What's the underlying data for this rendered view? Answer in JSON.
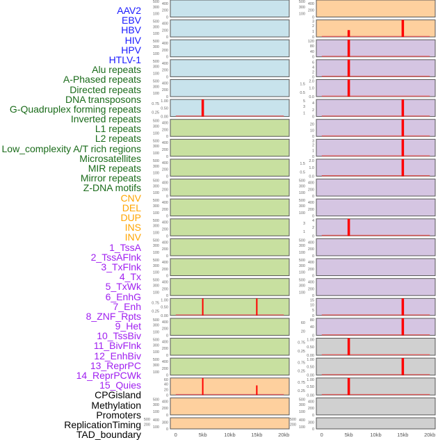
{
  "chart_data": {
    "type": "bar",
    "title": "",
    "xlabel": "",
    "ylabel": "",
    "xlim_kb": [
      -1,
      21
    ],
    "x_ticks": [
      {
        "value": 0,
        "label": "0"
      },
      {
        "value": 5,
        "label": "5kb"
      },
      {
        "value": 10,
        "label": "10kb"
      },
      {
        "value": 15,
        "label": "15kb"
      },
      {
        "value": 20,
        "label": "20kb"
      }
    ],
    "track_labels": [
      {
        "text": "AAV2",
        "color": "#1a1aff"
      },
      {
        "text": "EBV",
        "color": "#1a1aff"
      },
      {
        "text": "HBV",
        "color": "#1a1aff"
      },
      {
        "text": "HIV",
        "color": "#1a1aff"
      },
      {
        "text": "HPV",
        "color": "#1a1aff"
      },
      {
        "text": "HTLV-1",
        "color": "#1a1aff"
      },
      {
        "text": "Alu repeats",
        "color": "#1a6b1a"
      },
      {
        "text": "A-Phased repeats",
        "color": "#1a6b1a"
      },
      {
        "text": "Directed repeats",
        "color": "#1a6b1a"
      },
      {
        "text": "DNA transposons",
        "color": "#1a6b1a"
      },
      {
        "text": "G-Quadruplex forming repeats",
        "color": "#1a6b1a"
      },
      {
        "text": "Inverted repeats",
        "color": "#1a6b1a"
      },
      {
        "text": "L1 repeats",
        "color": "#1a6b1a"
      },
      {
        "text": "L2 repeats",
        "color": "#1a6b1a"
      },
      {
        "text": "Low_complexity A/T rich regions",
        "color": "#1a6b1a"
      },
      {
        "text": "Microsatellites",
        "color": "#1a6b1a"
      },
      {
        "text": "MIR repeats",
        "color": "#1a6b1a"
      },
      {
        "text": "Mirror repeats",
        "color": "#1a6b1a"
      },
      {
        "text": "Z-DNA motifs",
        "color": "#1a6b1a"
      },
      {
        "text": "CNV",
        "color": "#ffa500"
      },
      {
        "text": "DEL",
        "color": "#ffa500"
      },
      {
        "text": "DUP",
        "color": "#ffa500"
      },
      {
        "text": "INS",
        "color": "#ffa500"
      },
      {
        "text": "INV",
        "color": "#ffa500"
      },
      {
        "text": "1_TssA",
        "color": "#a020f0"
      },
      {
        "text": "2_TssAFlnk",
        "color": "#a020f0"
      },
      {
        "text": "3_TxFlnk",
        "color": "#a020f0"
      },
      {
        "text": "4_Tx",
        "color": "#a020f0"
      },
      {
        "text": "5_TxWk",
        "color": "#a020f0"
      },
      {
        "text": "6_EnhG",
        "color": "#a020f0"
      },
      {
        "text": "7_Enh",
        "color": "#a020f0"
      },
      {
        "text": "8_ZNF_Rpts",
        "color": "#a020f0"
      },
      {
        "text": "9_Het",
        "color": "#a020f0"
      },
      {
        "text": "10_TssBiv",
        "color": "#a020f0"
      },
      {
        "text": "11_BivFlnk",
        "color": "#a020f0"
      },
      {
        "text": "12_EnhBiv",
        "color": "#a020f0"
      },
      {
        "text": "13_ReprPC",
        "color": "#a020f0"
      },
      {
        "text": "14_ReprPCWk",
        "color": "#a020f0"
      },
      {
        "text": "15_Quies",
        "color": "#a020f0"
      },
      {
        "text": "CPGisland",
        "color": "#000000"
      },
      {
        "text": "Methylation",
        "color": "#000000"
      },
      {
        "text": "Promoters",
        "color": "#000000"
      },
      {
        "text": "ReplicationTiming",
        "color": "#000000"
      },
      {
        "text": "TAD_boundary",
        "color": "#000000"
      }
    ],
    "colors": {
      "blue": "#c8e3ec",
      "green": "#c8e0a0",
      "orange": "#fed09e",
      "purple": "#d5c5e2",
      "gray": "#d0d0d0",
      "bar": "#ff0000",
      "baseline": "#e06060"
    },
    "columns": [
      {
        "panels": [
          {
            "bg": "blue",
            "ymax": 500,
            "ticks": [
              "0",
              "100",
              "200",
              "300",
              "400",
              "500"
            ],
            "bars": []
          },
          {
            "bg": "blue",
            "ymax": 500,
            "ticks": [
              "0",
              "100",
              "200",
              "300",
              "400",
              "500"
            ],
            "bars": []
          },
          {
            "bg": "blue",
            "ymax": 500,
            "ticks": [
              "0",
              "100",
              "200",
              "300",
              "400",
              "500"
            ],
            "bars": []
          },
          {
            "bg": "blue",
            "ymax": 500,
            "ticks": [
              "0",
              "100",
              "200",
              "300",
              "400",
              "500"
            ],
            "bars": []
          },
          {
            "bg": "blue",
            "ymax": 500,
            "ticks": [
              "0",
              "100",
              "200",
              "300",
              "400",
              "500"
            ],
            "bars": []
          },
          {
            "bg": "blue",
            "ymax": 1,
            "ticks": [
              "0.00",
              "0.25",
              "0.50",
              "0.75",
              "1.00"
            ],
            "bars": [
              {
                "x": 5,
                "y": 1
              }
            ]
          },
          {
            "bg": "green",
            "ymax": 500,
            "ticks": [
              "0",
              "100",
              "200",
              "300",
              "400",
              "500"
            ],
            "bars": []
          },
          {
            "bg": "green",
            "ymax": 500,
            "ticks": [
              "0",
              "100",
              "200",
              "300",
              "400",
              "500"
            ],
            "bars": []
          },
          {
            "bg": "green",
            "ymax": 500,
            "ticks": [
              "0",
              "100",
              "200",
              "300",
              "400",
              "500"
            ],
            "bars": []
          },
          {
            "bg": "green",
            "ymax": 500,
            "ticks": [
              "0",
              "100",
              "200",
              "300",
              "400",
              "500"
            ],
            "bars": []
          },
          {
            "bg": "green",
            "ymax": 500,
            "ticks": [
              "0",
              "100",
              "200",
              "300",
              "400",
              "500"
            ],
            "bars": []
          },
          {
            "bg": "green",
            "ymax": 500,
            "ticks": [
              "0",
              "100",
              "200",
              "300",
              "400",
              "500"
            ],
            "bars": []
          },
          {
            "bg": "green",
            "ymax": 500,
            "ticks": [
              "0",
              "100",
              "200",
              "300",
              "400",
              "500"
            ],
            "bars": []
          },
          {
            "bg": "green",
            "ymax": 500,
            "ticks": [
              "0",
              "100",
              "200",
              "300",
              "400",
              "500"
            ],
            "bars": []
          },
          {
            "bg": "green",
            "ymax": 500,
            "ticks": [
              "0",
              "100",
              "200",
              "300",
              "400",
              "500"
            ],
            "bars": []
          },
          {
            "bg": "green",
            "ymax": 1,
            "ticks": [
              "0.00",
              "0.25",
              "0.50",
              "0.75",
              "1.00"
            ],
            "bars": [
              {
                "x": 5,
                "y": 1
              },
              {
                "x": 15,
                "y": 1
              }
            ]
          },
          {
            "bg": "green",
            "ymax": 500,
            "ticks": [
              "0",
              "100",
              "200",
              "300",
              "400",
              "500"
            ],
            "bars": []
          },
          {
            "bg": "green",
            "ymax": 500,
            "ticks": [
              "0",
              "100",
              "200",
              "300",
              "400",
              "500"
            ],
            "bars": []
          },
          {
            "bg": "green",
            "ymax": 500,
            "ticks": [
              "0",
              "100",
              "200",
              "300",
              "400",
              "500"
            ],
            "bars": []
          },
          {
            "bg": "orange",
            "ymax": 62,
            "ticks": [
              "0",
              "20",
              "40",
              "60"
            ],
            "bars": [
              {
                "x": 5,
                "y": 62
              },
              {
                "x": 15,
                "y": 35
              }
            ]
          },
          {
            "bg": "orange",
            "ymax": 500,
            "ticks": [
              "0",
              "100",
              "200",
              "300",
              "400",
              "500"
            ],
            "bars": []
          },
          {
            "bg": "orange",
            "ymax": 500,
            "ticks": [
              "0",
              "100",
              "200",
              "300",
              "400",
              "500"
            ],
            "bars": []
          }
        ]
      },
      {
        "panels": [
          {
            "bg": "orange",
            "ymax": 500,
            "ticks": [
              "0",
              "100",
              "200",
              "300",
              "400",
              "500"
            ],
            "bars": []
          },
          {
            "bg": "orange",
            "ymax": 3,
            "ticks": [
              "0",
              "1",
              "2",
              "3"
            ],
            "bars": [
              {
                "x": 5,
                "y": 1.2
              },
              {
                "x": 15,
                "y": 3
              }
            ]
          },
          {
            "bg": "purple",
            "ymax": 125,
            "ticks": [
              "0",
              "40",
              "80",
              "120"
            ],
            "bars": [
              {
                "x": 5,
                "y": 125
              }
            ]
          },
          {
            "bg": "purple",
            "ymax": 7,
            "ticks": [
              "0",
              "2",
              "4",
              "6"
            ],
            "bars": [
              {
                "x": 5,
                "y": 7
              }
            ]
          },
          {
            "bg": "purple",
            "ymax": 2,
            "ticks": [
              "0.0",
              "0.5",
              "1.0",
              "1.5",
              "2.0"
            ],
            "bars": [
              {
                "x": 5,
                "y": 2
              }
            ]
          },
          {
            "bg": "purple",
            "ymax": 5,
            "ticks": [
              "0",
              "1",
              "2",
              "3",
              "4",
              "5"
            ],
            "bars": [
              {
                "x": 15,
                "y": 5
              }
            ]
          },
          {
            "bg": "purple",
            "ymax": 28,
            "ticks": [
              "0",
              "10",
              "20"
            ],
            "bars": [
              {
                "x": 15,
                "y": 28
              }
            ]
          },
          {
            "bg": "purple",
            "ymax": 3,
            "ticks": [
              "0",
              "1",
              "2",
              "3"
            ],
            "bars": [
              {
                "x": 15,
                "y": 3
              }
            ]
          },
          {
            "bg": "purple",
            "ymax": 2,
            "ticks": [
              "0.0",
              "0.5",
              "1.0",
              "1.5",
              "2.0"
            ],
            "bars": [
              {
                "x": 15,
                "y": 2
              }
            ]
          },
          {
            "bg": "purple",
            "ymax": 500,
            "ticks": [
              "0",
              "100",
              "200",
              "300",
              "400",
              "500"
            ],
            "bars": []
          },
          {
            "bg": "purple",
            "ymax": 500,
            "ticks": [
              "0",
              "100",
              "200",
              "300",
              "400",
              "500"
            ],
            "bars": []
          },
          {
            "bg": "purple",
            "ymax": 4,
            "ticks": [
              "0",
              "1",
              "2",
              "3",
              "4"
            ],
            "bars": [
              {
                "x": 5,
                "y": 4
              }
            ]
          },
          {
            "bg": "purple",
            "ymax": 500,
            "ticks": [
              "0",
              "100",
              "200",
              "300",
              "400",
              "500"
            ],
            "bars": []
          },
          {
            "bg": "purple",
            "ymax": 500,
            "ticks": [
              "0",
              "100",
              "200",
              "300",
              "400",
              "500"
            ],
            "bars": []
          },
          {
            "bg": "purple",
            "ymax": 500,
            "ticks": [
              "0",
              "100",
              "200",
              "300",
              "400",
              "500"
            ],
            "bars": []
          },
          {
            "bg": "purple",
            "ymax": 16,
            "ticks": [
              "0",
              "5",
              "10",
              "15"
            ],
            "bars": [
              {
                "x": 15,
                "y": 16
              }
            ]
          },
          {
            "bg": "purple",
            "ymax": 80,
            "ticks": [
              "0",
              "20",
              "40",
              "60",
              "80"
            ],
            "bars": [
              {
                "x": 15,
                "y": 80
              }
            ]
          },
          {
            "bg": "gray",
            "ymax": 1,
            "ticks": [
              "0.00",
              "0.25",
              "0.50",
              "0.75",
              "1.00"
            ],
            "bars": [
              {
                "x": 5,
                "y": 1
              }
            ]
          },
          {
            "bg": "gray",
            "ymax": 1,
            "ticks": [
              "0.00",
              "0.25",
              "0.50",
              "0.75",
              "1.00"
            ],
            "bars": [
              {
                "x": 15,
                "y": 1
              }
            ]
          },
          {
            "bg": "gray",
            "ymax": 1,
            "ticks": [
              "0.00",
              "0.25",
              "0.50",
              "0.75",
              "1.00"
            ],
            "bars": [
              {
                "x": 5,
                "y": 1
              }
            ]
          },
          {
            "bg": "gray",
            "ymax": 500,
            "ticks": [
              "0",
              "100",
              "200",
              "300",
              "400",
              "500"
            ],
            "bars": []
          },
          {
            "bg": "gray",
            "ymax": 500,
            "ticks": [
              "0",
              "100",
              "200",
              "300",
              "400",
              "500"
            ],
            "bars": []
          }
        ]
      }
    ]
  }
}
